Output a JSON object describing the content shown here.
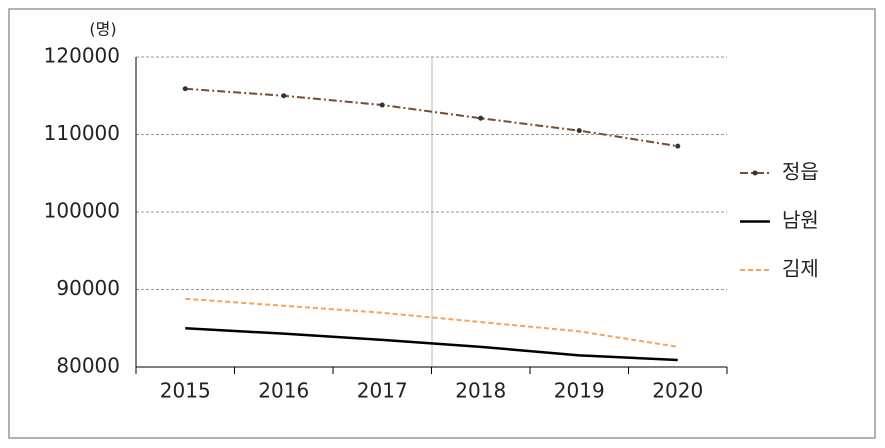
{
  "chart_data": {
    "type": "line",
    "y_label": "(명)",
    "categories": [
      "2015",
      "2016",
      "2017",
      "2018",
      "2019",
      "2020"
    ],
    "series": [
      {
        "name": "정읍",
        "color": "#7b4a33",
        "linestyle": "dashdot",
        "marker": true,
        "values": [
          115900,
          115000,
          113800,
          112100,
          110500,
          108500
        ]
      },
      {
        "name": "남원",
        "color": "#000000",
        "linestyle": "solid",
        "marker": false,
        "values": [
          85000,
          84300,
          83500,
          82600,
          81500,
          80900
        ]
      },
      {
        "name": "김제",
        "color": "#f4a460",
        "linestyle": "dashed",
        "marker": false,
        "values": [
          88800,
          87900,
          87000,
          85800,
          84600,
          82600
        ]
      }
    ],
    "ylim": [
      80000,
      120000
    ],
    "yticks": [
      80000,
      90000,
      100000,
      110000,
      120000
    ],
    "grid": true
  }
}
